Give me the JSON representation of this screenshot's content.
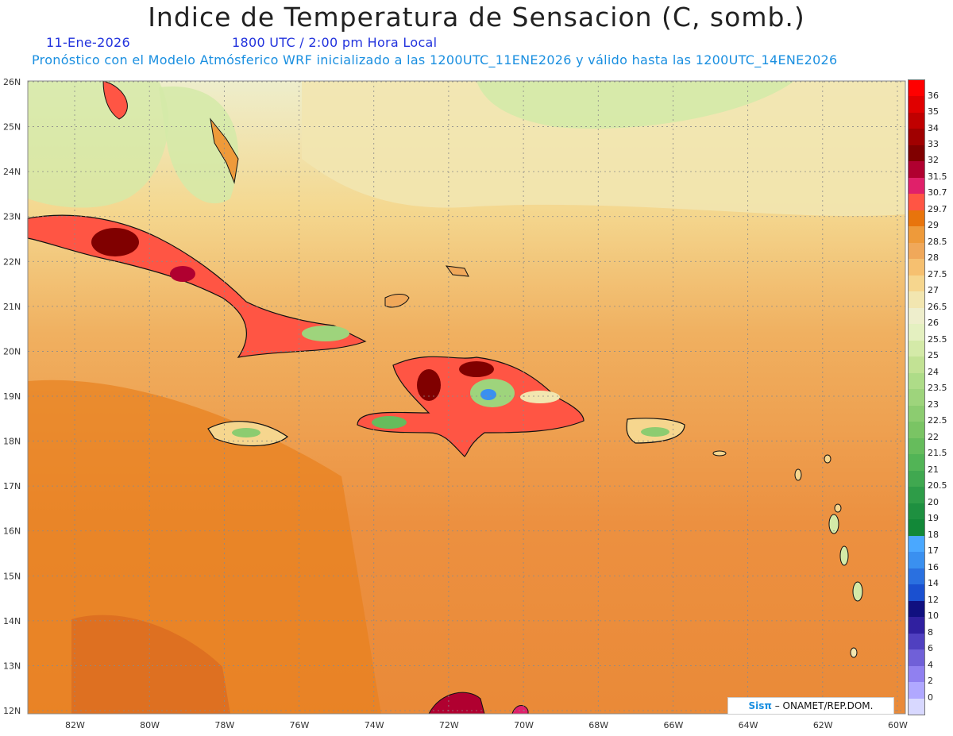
{
  "title": "Indice de Temperatura de Sensacion (C, somb.)",
  "date": "11-Ene-2026",
  "time": "1800 UTC / 2:00 pm Hora Local",
  "init": "Pronóstico con el Modelo Atmósferico WRF inicializado a las 1200UTC_11ENE2026 y válido hasta las  1200UTC_14ENE2026",
  "credit": {
    "brand": "Sisπ",
    "rest": " – ONAMET/REP.DOM."
  },
  "lat_labels": [
    "26N",
    "25N",
    "24N",
    "23N",
    "22N",
    "21N",
    "20N",
    "19N",
    "18N",
    "17N",
    "16N",
    "15N",
    "14N",
    "13N",
    "12N"
  ],
  "lon_labels": [
    "82W",
    "80W",
    "78W",
    "76W",
    "74W",
    "72W",
    "70W",
    "68W",
    "66W",
    "64W",
    "62W",
    "60W"
  ],
  "legend": {
    "labels": [
      "36",
      "35",
      "34",
      "33",
      "32",
      "31.5",
      "30.7",
      "29.7",
      "29",
      "28.5",
      "28",
      "27.5",
      "27",
      "26.5",
      "26",
      "25.5",
      "25",
      "24",
      "23.5",
      "23",
      "22.5",
      "22",
      "21.5",
      "21",
      "20.5",
      "20",
      "19",
      "18",
      "17",
      "16",
      "14",
      "12",
      "10",
      "8",
      "6",
      "4",
      "2",
      "0"
    ],
    "colors": [
      "#ff0000",
      "#e00000",
      "#c00000",
      "#a00000",
      "#800000",
      "#b00030",
      "#e0206a",
      "#ff5544",
      "#e8740c",
      "#ee9a3a",
      "#f0a85a",
      "#f6c070",
      "#f6d68e",
      "#f2e6b0",
      "#eeeecc",
      "#e4f0c0",
      "#d4eaa8",
      "#c2e294",
      "#aedc88",
      "#9ed47c",
      "#8ccc70",
      "#7ac464",
      "#66bc5c",
      "#52b456",
      "#40a850",
      "#2e9c48",
      "#1e9040",
      "#128838",
      "#4aa8ff",
      "#3a90f0",
      "#2a70e0",
      "#1a50d0",
      "#101080",
      "#3020a0",
      "#5040c0",
      "#7060d8",
      "#9080f0",
      "#b0a8ff",
      "#d8d8ff"
    ]
  },
  "map_legend_gradient": "sea to land heat index"
}
